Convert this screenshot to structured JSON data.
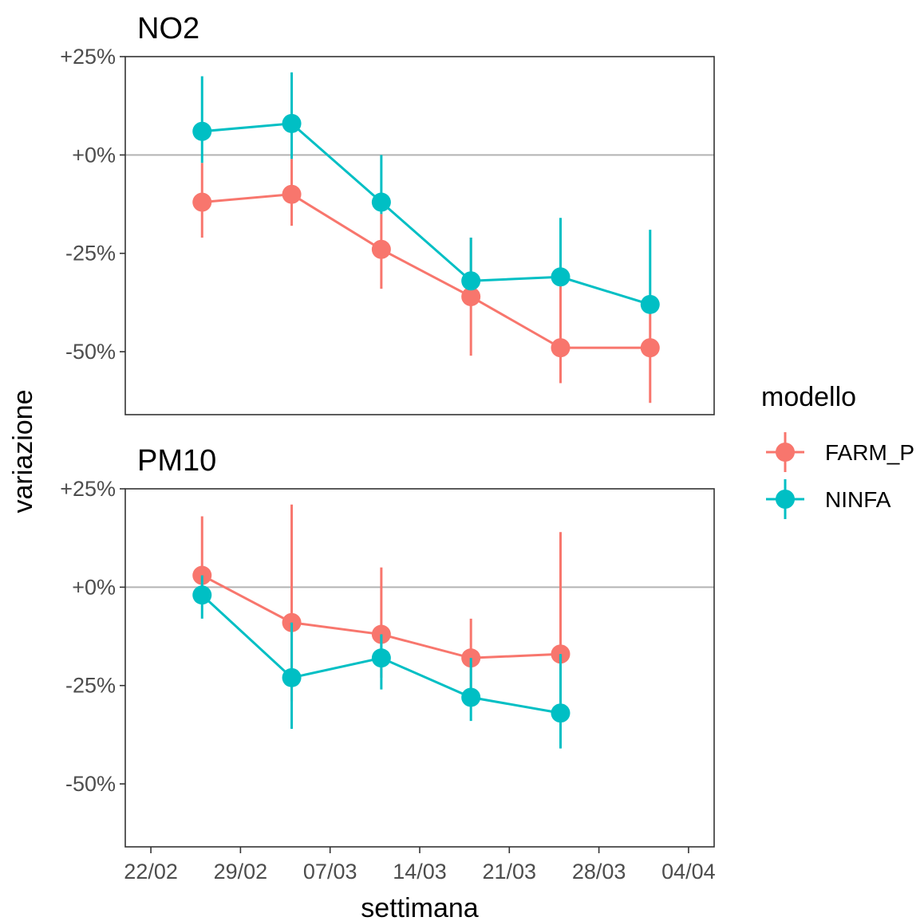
{
  "chart_data": {
    "type": "line",
    "xlabel": "settimana",
    "ylabel": "variazione",
    "x_tick_labels": [
      "22/02",
      "29/02",
      "07/03",
      "14/03",
      "21/03",
      "28/03",
      "04/04"
    ],
    "y_tick_labels": [
      "+25%",
      "+0%",
      "-25%",
      "-50%"
    ],
    "y_ticks": [
      25,
      0,
      -25,
      -50
    ],
    "ylim": [
      -66,
      25
    ],
    "x_range": [
      "2020-02-20",
      "2020-04-06"
    ],
    "reference_line": 0,
    "legend": {
      "title": "modello",
      "position": "right",
      "entries": [
        {
          "name": "FARM_P",
          "color": "#F8766D"
        },
        {
          "name": "NINFA",
          "color": "#00BFC4"
        }
      ]
    },
    "panels": [
      {
        "title": "NO2",
        "series": [
          {
            "name": "FARM_P",
            "color": "#F8766D",
            "points": [
              {
                "x": "2020-02-26",
                "y": -12,
                "lo": -21,
                "hi": -2
              },
              {
                "x": "2020-03-04",
                "y": -10,
                "lo": -18,
                "hi": -1
              },
              {
                "x": "2020-03-11",
                "y": -24,
                "lo": -34,
                "hi": -15
              },
              {
                "x": "2020-03-18",
                "y": -36,
                "lo": -51,
                "hi": -21
              },
              {
                "x": "2020-03-25",
                "y": -49,
                "lo": -58,
                "hi": -32
              },
              {
                "x": "2020-04-01",
                "y": -49,
                "lo": -63,
                "hi": -40
              }
            ]
          },
          {
            "name": "NINFA",
            "color": "#00BFC4",
            "points": [
              {
                "x": "2020-02-26",
                "y": 6,
                "lo": -2,
                "hi": 20
              },
              {
                "x": "2020-03-04",
                "y": 8,
                "lo": -1,
                "hi": 21
              },
              {
                "x": "2020-03-11",
                "y": -12,
                "lo": -15,
                "hi": 0
              },
              {
                "x": "2020-03-18",
                "y": -32,
                "lo": -33,
                "hi": -21
              },
              {
                "x": "2020-03-25",
                "y": -31,
                "lo": -32,
                "hi": -16
              },
              {
                "x": "2020-04-01",
                "y": -38,
                "lo": -40,
                "hi": -19
              }
            ]
          }
        ]
      },
      {
        "title": "PM10",
        "series": [
          {
            "name": "FARM_P",
            "color": "#F8766D",
            "points": [
              {
                "x": "2020-02-26",
                "y": 3,
                "lo": -2,
                "hi": 18
              },
              {
                "x": "2020-03-04",
                "y": -9,
                "lo": -29,
                "hi": 21
              },
              {
                "x": "2020-03-11",
                "y": -12,
                "lo": -23,
                "hi": 5
              },
              {
                "x": "2020-03-18",
                "y": -18,
                "lo": -27,
                "hi": -8
              },
              {
                "x": "2020-03-25",
                "y": -17,
                "lo": -32,
                "hi": 14
              }
            ]
          },
          {
            "name": "NINFA",
            "color": "#00BFC4",
            "points": [
              {
                "x": "2020-02-26",
                "y": -2,
                "lo": -8,
                "hi": 3
              },
              {
                "x": "2020-03-04",
                "y": -23,
                "lo": -36,
                "hi": -9
              },
              {
                "x": "2020-03-11",
                "y": -18,
                "lo": -26,
                "hi": -12
              },
              {
                "x": "2020-03-18",
                "y": -28,
                "lo": -34,
                "hi": -18
              },
              {
                "x": "2020-03-25",
                "y": -32,
                "lo": -41,
                "hi": -17
              }
            ]
          }
        ]
      }
    ]
  }
}
